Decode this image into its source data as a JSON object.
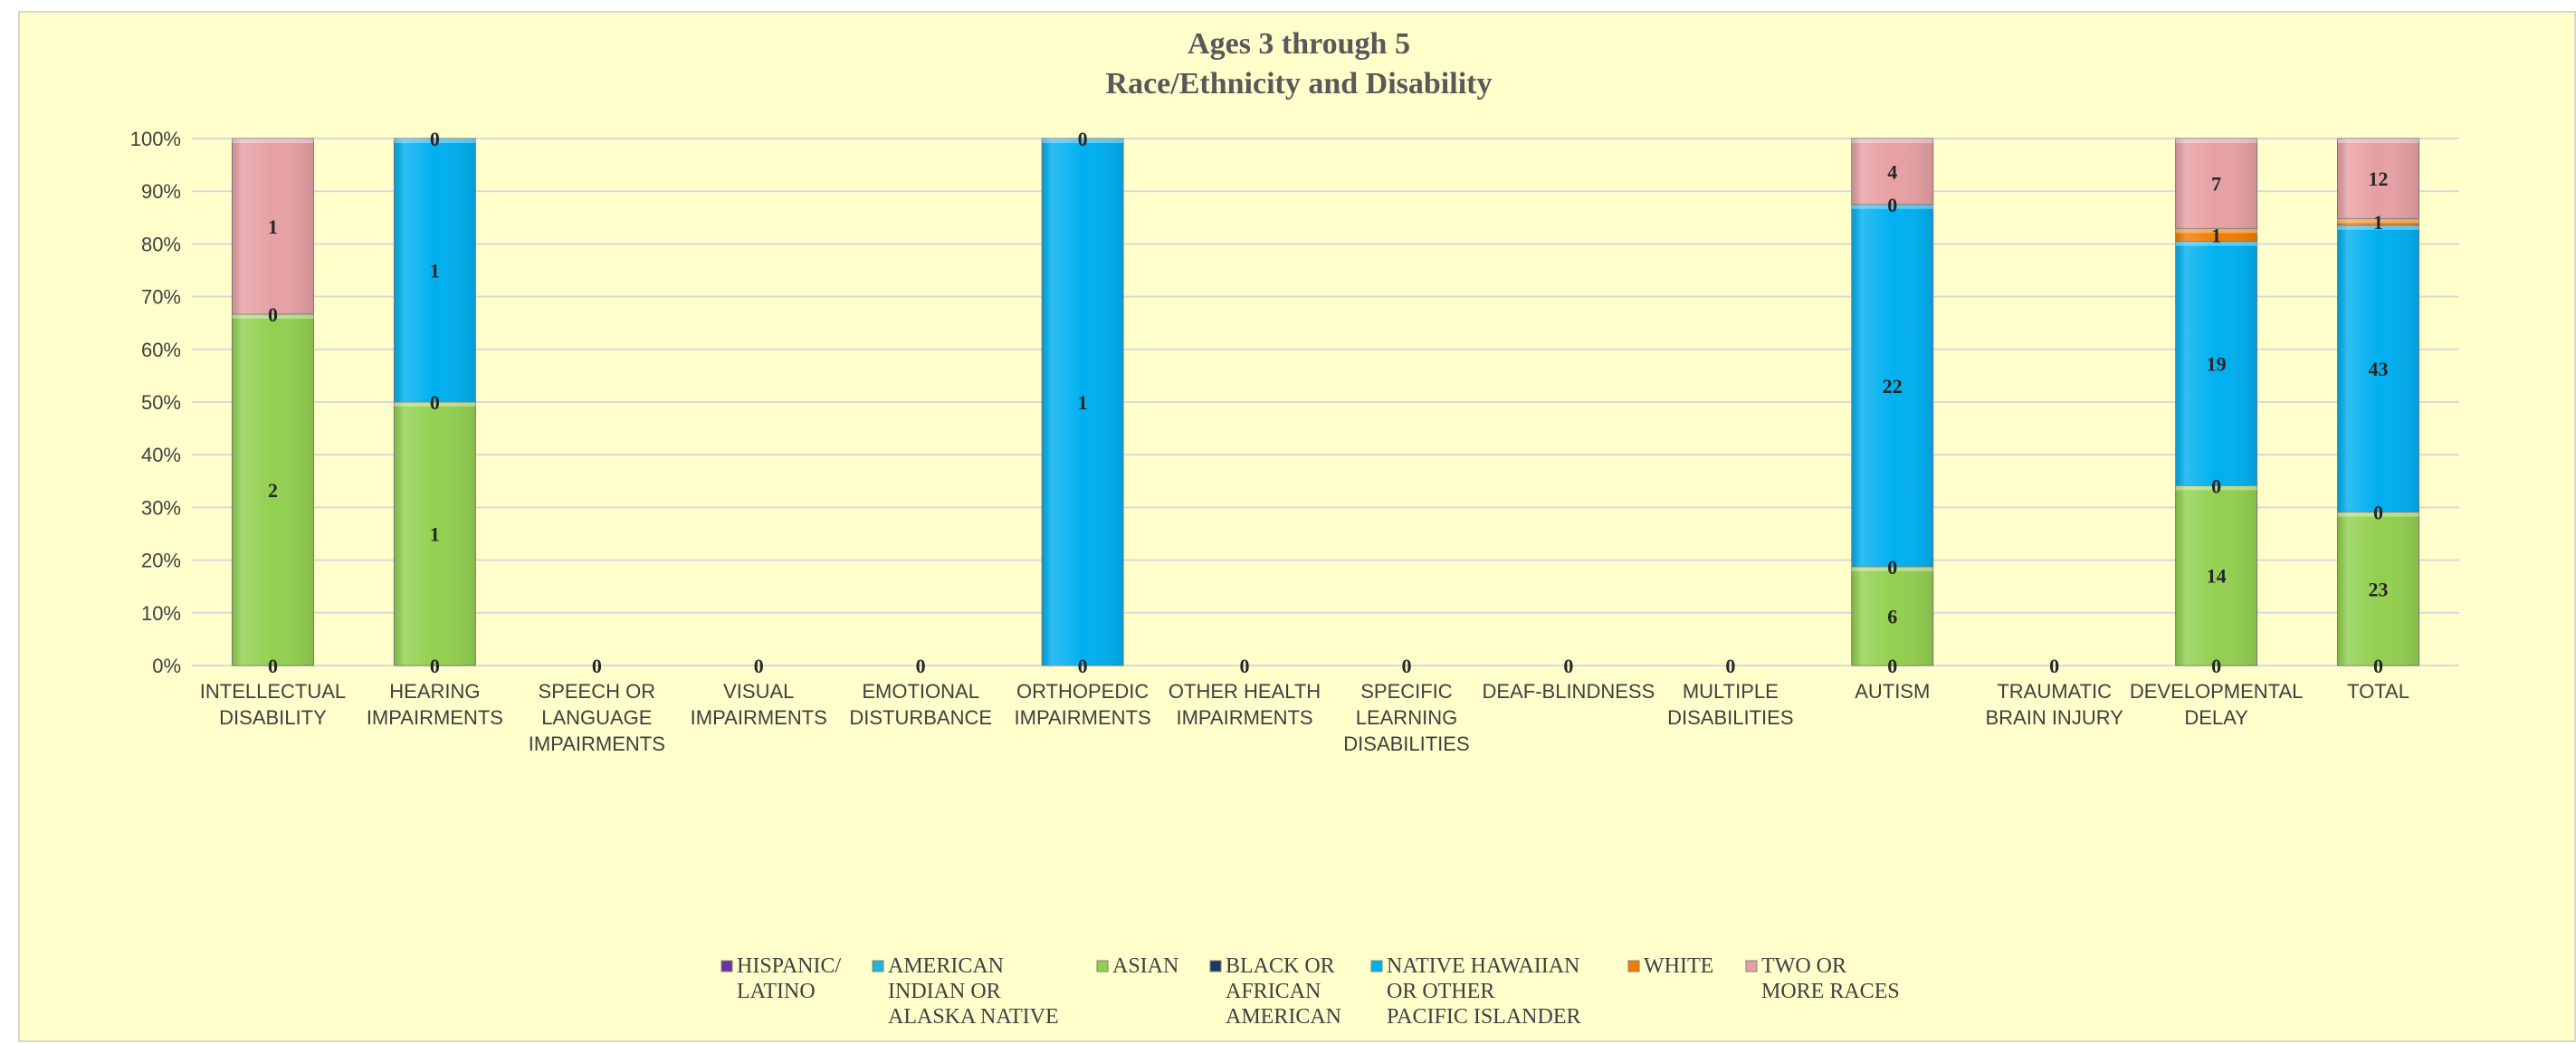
{
  "chart_data": {
    "type": "bar",
    "stacked": "percent",
    "title": "Ages 3 through 5",
    "subtitle": "Race/Ethnicity and Disability",
    "y_ticks": [
      "0%",
      "10%",
      "20%",
      "30%",
      "40%",
      "50%",
      "60%",
      "70%",
      "80%",
      "90%",
      "100%"
    ],
    "ylim": [
      0,
      100
    ],
    "grid": true,
    "legend_position": "bottom",
    "categories": [
      [
        "INTELLECTUAL",
        "DISABILITY"
      ],
      [
        "HEARING",
        "IMPAIRMENTS"
      ],
      [
        "SPEECH OR",
        "LANGUAGE",
        "IMPAIRMENTS"
      ],
      [
        "VISUAL",
        "IMPAIRMENTS"
      ],
      [
        "EMOTIONAL",
        "DISTURBANCE"
      ],
      [
        "ORTHOPEDIC",
        "IMPAIRMENTS"
      ],
      [
        "OTHER HEALTH",
        "IMPAIRMENTS"
      ],
      [
        "SPECIFIC",
        "LEARNING",
        "DISABILITIES"
      ],
      [
        "DEAF-BLINDNESS"
      ],
      [
        "MULTIPLE",
        "DISABILITIES"
      ],
      [
        "AUTISM"
      ],
      [
        "TRAUMATIC",
        "BRAIN INJURY"
      ],
      [
        "DEVELOPMENTAL",
        "DELAY"
      ],
      [
        "TOTAL"
      ]
    ],
    "series": [
      {
        "name": [
          "HISPANIC/",
          "LATINO"
        ],
        "color": "#7030a0",
        "values": [
          0,
          0,
          0,
          0,
          0,
          0,
          0,
          0,
          0,
          0,
          0,
          0,
          0,
          0
        ]
      },
      {
        "name": [
          "AMERICAN",
          "INDIAN OR",
          "ALASKA NATIVE"
        ],
        "color": "#1fb6d8",
        "values": [
          0,
          0,
          null,
          null,
          null,
          0,
          null,
          null,
          null,
          null,
          0,
          null,
          0,
          0
        ]
      },
      {
        "name": [
          "ASIAN"
        ],
        "color": "#92d050",
        "values": [
          2,
          1,
          null,
          null,
          null,
          null,
          null,
          null,
          null,
          null,
          6,
          null,
          14,
          23
        ]
      },
      {
        "name": [
          "BLACK OR",
          "AFRICAN",
          "AMERICAN"
        ],
        "color": "#1f3864",
        "values": [
          0,
          0,
          null,
          null,
          null,
          null,
          null,
          null,
          null,
          null,
          0,
          null,
          0,
          0
        ]
      },
      {
        "name": [
          "NATIVE HAWAIIAN",
          "OR OTHER",
          "PACIFIC ISLANDER"
        ],
        "color": "#00b0f0",
        "values": [
          null,
          1,
          null,
          null,
          null,
          1,
          null,
          null,
          null,
          null,
          22,
          null,
          19,
          43
        ]
      },
      {
        "name": [
          "WHITE"
        ],
        "color": "#f07d00",
        "values": [
          null,
          0,
          null,
          null,
          null,
          0,
          null,
          null,
          null,
          null,
          0,
          null,
          1,
          1
        ]
      },
      {
        "name": [
          "TWO OR",
          "MORE RACES"
        ],
        "color": "#e6a0a4",
        "values": [
          1,
          null,
          null,
          null,
          null,
          null,
          null,
          null,
          null,
          null,
          4,
          null,
          7,
          12
        ]
      }
    ]
  }
}
